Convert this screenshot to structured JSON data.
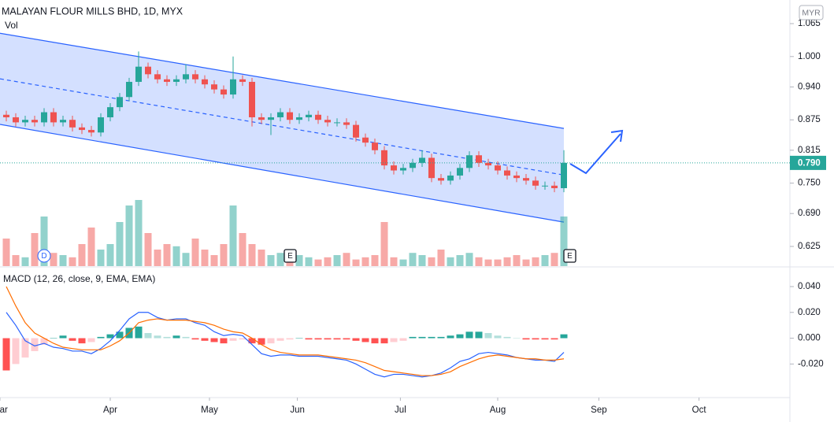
{
  "chart_data": {
    "type": "candlestick",
    "title": "MALAYAN FLOUR MILLS BHD, 1D, MYX",
    "volume_label": "Vol",
    "currency": "MYR",
    "up_color": "#26a69a",
    "down_color": "#ef5350",
    "channel_color": "#2962ff",
    "open": [
      0.885,
      0.88,
      0.87,
      0.875,
      0.87,
      0.89,
      0.87,
      0.875,
      0.86,
      0.855,
      0.85,
      0.88,
      0.9,
      0.92,
      0.95,
      0.98,
      0.965,
      0.955,
      0.95,
      0.955,
      0.965,
      0.955,
      0.945,
      0.935,
      0.925,
      0.955,
      0.95,
      0.88,
      0.875,
      0.88,
      0.89,
      0.875,
      0.88,
      0.885,
      0.875,
      0.87,
      0.87,
      0.865,
      0.84,
      0.83,
      0.815,
      0.785,
      0.775,
      0.78,
      0.79,
      0.8,
      0.76,
      0.755,
      0.765,
      0.78,
      0.805,
      0.79,
      0.785,
      0.775,
      0.765,
      0.76,
      0.755,
      0.745,
      0.745,
      0.74
    ],
    "high": [
      0.893,
      0.888,
      0.883,
      0.883,
      0.898,
      0.898,
      0.883,
      0.883,
      0.868,
      0.863,
      0.888,
      0.908,
      0.928,
      0.958,
      1.01,
      0.988,
      0.973,
      0.963,
      0.963,
      0.985,
      0.973,
      0.963,
      0.953,
      0.943,
      1.0,
      0.963,
      0.958,
      0.888,
      0.888,
      0.898,
      0.898,
      0.888,
      0.893,
      0.893,
      0.883,
      0.878,
      0.878,
      0.873,
      0.848,
      0.838,
      0.823,
      0.793,
      0.788,
      0.798,
      0.815,
      0.808,
      0.768,
      0.773,
      0.788,
      0.813,
      0.813,
      0.798,
      0.793,
      0.783,
      0.773,
      0.768,
      0.763,
      0.753,
      0.753,
      0.815
    ],
    "low": [
      0.872,
      0.862,
      0.862,
      0.862,
      0.862,
      0.862,
      0.862,
      0.852,
      0.847,
      0.842,
      0.842,
      0.872,
      0.892,
      0.912,
      0.942,
      0.957,
      0.947,
      0.942,
      0.942,
      0.947,
      0.947,
      0.937,
      0.927,
      0.917,
      0.917,
      0.942,
      0.862,
      0.867,
      0.845,
      0.872,
      0.867,
      0.867,
      0.872,
      0.867,
      0.862,
      0.862,
      0.857,
      0.832,
      0.822,
      0.807,
      0.777,
      0.767,
      0.767,
      0.772,
      0.782,
      0.752,
      0.747,
      0.747,
      0.757,
      0.772,
      0.782,
      0.777,
      0.767,
      0.757,
      0.752,
      0.747,
      0.737,
      0.737,
      0.732,
      0.732
    ],
    "close": [
      0.88,
      0.87,
      0.875,
      0.87,
      0.89,
      0.87,
      0.875,
      0.86,
      0.855,
      0.85,
      0.88,
      0.9,
      0.92,
      0.95,
      0.98,
      0.965,
      0.955,
      0.95,
      0.955,
      0.965,
      0.955,
      0.945,
      0.935,
      0.925,
      0.955,
      0.95,
      0.88,
      0.875,
      0.88,
      0.89,
      0.875,
      0.88,
      0.885,
      0.875,
      0.87,
      0.87,
      0.865,
      0.84,
      0.83,
      0.815,
      0.785,
      0.775,
      0.78,
      0.79,
      0.8,
      0.76,
      0.755,
      0.765,
      0.78,
      0.805,
      0.79,
      0.785,
      0.775,
      0.765,
      0.76,
      0.755,
      0.745,
      0.745,
      0.74,
      0.79
    ],
    "volume": [
      25,
      10,
      8,
      30,
      45,
      12,
      10,
      8,
      20,
      35,
      15,
      20,
      40,
      55,
      60,
      30,
      15,
      20,
      18,
      12,
      25,
      15,
      10,
      20,
      55,
      30,
      20,
      15,
      10,
      12,
      8,
      10,
      8,
      6,
      8,
      10,
      12,
      6,
      8,
      10,
      40,
      8,
      6,
      12,
      10,
      8,
      15,
      8,
      10,
      12,
      8,
      6,
      6,
      8,
      10,
      6,
      8,
      10,
      12,
      45
    ],
    "channel": {
      "upper": [
        1.046,
        0.858
      ],
      "middle": [
        0.956,
        0.766
      ],
      "lower": [
        0.866,
        0.673
      ]
    },
    "last_price": {
      "value": 0.79,
      "label": "0.790"
    },
    "ylim": [
      0.625,
      1.065
    ],
    "yticks": [
      0.625,
      {
        "value": 0.69,
        "label": "0.690"
      },
      {
        "value": 0.75,
        "label": "0.750"
      },
      0.815,
      0.875,
      {
        "value": 0.94,
        "label": "0.940"
      },
      {
        "value": 1.0,
        "label": "1.000"
      },
      1.065
    ],
    "xticks": [
      {
        "value": -0.67,
        "label": "Mar"
      },
      {
        "value": 11,
        "label": "Apr"
      },
      {
        "value": 21.5,
        "label": "May"
      },
      {
        "value": 30.8,
        "label": "Jun"
      },
      {
        "value": 41.7,
        "label": "Jul"
      },
      {
        "value": 52,
        "label": "Aug"
      },
      {
        "value": 62.7,
        "label": "Sep"
      },
      {
        "value": 73.3,
        "label": "Oct"
      }
    ],
    "events": [
      "D",
      "E",
      "E"
    ],
    "macd": {
      "name": "MACD (12, 26, close, 9, EMA, EMA)",
      "macd_color": "#2962ff",
      "signal_color": "#ff6d00",
      "macd": [
        0.02,
        0.01,
        -0.002,
        -0.006,
        -0.004,
        -0.007,
        -0.008,
        -0.01,
        -0.01,
        -0.012,
        -0.008,
        -0.002,
        0.006,
        0.015,
        0.02,
        0.02,
        0.016,
        0.014,
        0.015,
        0.015,
        0.012,
        0.01,
        0.005,
        0.002,
        0.003,
        0.002,
        -0.005,
        -0.012,
        -0.014,
        -0.013,
        -0.013,
        -0.014,
        -0.014,
        -0.014,
        -0.015,
        -0.016,
        -0.017,
        -0.02,
        -0.024,
        -0.028,
        -0.03,
        -0.028,
        -0.028,
        -0.029,
        -0.03,
        -0.029,
        -0.027,
        -0.023,
        -0.018,
        -0.016,
        -0.012,
        -0.011,
        -0.012,
        -0.013,
        -0.015,
        -0.016,
        -0.017,
        -0.017,
        -0.018,
        -0.011
      ],
      "signal": [
        0.04,
        0.025,
        0.012,
        0.004,
        0,
        -0.004,
        -0.007,
        -0.008,
        -0.009,
        -0.009,
        -0.009,
        -0.006,
        -0.002,
        0.004,
        0.012,
        0.014,
        0.015,
        0.014,
        0.014,
        0.014,
        0.013,
        0.012,
        0.01,
        0.007,
        0.005,
        0.004,
        0,
        -0.005,
        -0.009,
        -0.011,
        -0.012,
        -0.013,
        -0.013,
        -0.013,
        -0.014,
        -0.015,
        -0.016,
        -0.017,
        -0.019,
        -0.022,
        -0.025,
        -0.026,
        -0.027,
        -0.028,
        -0.029,
        -0.029,
        -0.028,
        -0.026,
        -0.022,
        -0.019,
        -0.016,
        -0.014,
        -0.013,
        -0.014,
        -0.015,
        -0.016,
        -0.016,
        -0.017,
        -0.017,
        -0.016
      ],
      "histogram": [
        -0.025,
        -0.02,
        -0.015,
        -0.01,
        -0.005,
        0,
        0.002,
        -0.002,
        -0.004,
        -0.003,
        0.001,
        0.003,
        0.005,
        0.008,
        0.009,
        0.004,
        0.002,
        0.001,
        0.002,
        0.001,
        -0.001,
        -0.002,
        -0.003,
        -0.004,
        -0.002,
        -0.001,
        -0.004,
        -0.005,
        -0.004,
        -0.002,
        -0.001,
        0,
        -0.001,
        -0.001,
        -0.001,
        -0.001,
        -0.001,
        -0.002,
        -0.003,
        -0.004,
        -0.004,
        -0.003,
        -0.002,
        0.001,
        0.001,
        0.001,
        0.001,
        0.002,
        0.003,
        0.005,
        0.005,
        0.004,
        0.002,
        0.001,
        0,
        -0.001,
        -0.001,
        -0.001,
        -0.001,
        0.003
      ],
      "ylim": [
        -0.0375,
        0.04
      ],
      "yticks": [
        {
          "value": 0.04,
          "label": "0.040"
        },
        {
          "value": 0.02,
          "label": "0.020"
        },
        {
          "value": 0,
          "label": "0.000"
        },
        {
          "value": -0.02,
          "label": "-0.020"
        }
      ]
    }
  }
}
